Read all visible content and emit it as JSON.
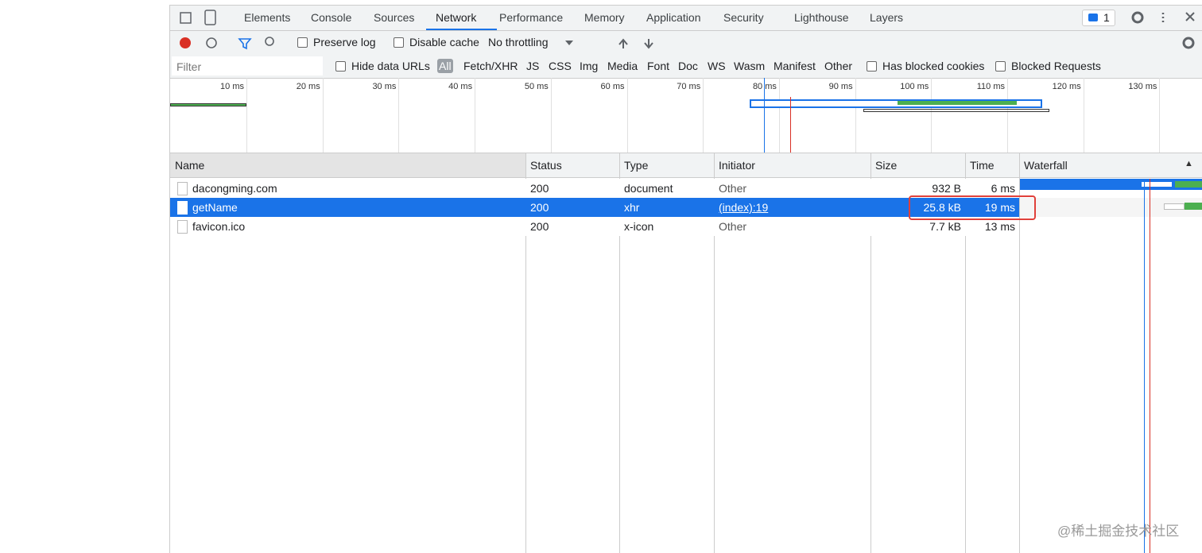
{
  "tabs": [
    "Elements",
    "Console",
    "Sources",
    "Network",
    "Performance",
    "Memory",
    "Application",
    "Security",
    "Lighthouse",
    "Layers"
  ],
  "issues_badge": "1",
  "toolbar": {
    "preserve_log": "Preserve log",
    "disable_cache": "Disable cache",
    "throttling": "No throttling"
  },
  "filter": {
    "placeholder": "Filter",
    "hide_data_urls": "Hide data URLs",
    "types": [
      "All",
      "Fetch/XHR",
      "JS",
      "CSS",
      "Img",
      "Media",
      "Font",
      "Doc",
      "WS",
      "Wasm",
      "Manifest",
      "Other"
    ],
    "blocked_cookies": "Has blocked cookies",
    "blocked_requests": "Blocked Requests"
  },
  "overview_ticks": [
    "10 ms",
    "20 ms",
    "30 ms",
    "40 ms",
    "50 ms",
    "60 ms",
    "70 ms",
    "80 ms",
    "90 ms",
    "100 ms",
    "110 ms",
    "120 ms",
    "130 ms"
  ],
  "table": {
    "columns": [
      "Name",
      "Status",
      "Type",
      "Initiator",
      "Size",
      "Time",
      "Waterfall"
    ],
    "rows": [
      [
        "dacongming.com",
        "200",
        "document",
        "Other",
        "932 B",
        "6 ms"
      ],
      [
        "getName",
        "200",
        "xhr",
        "(index):19",
        "25.8 kB",
        "19 ms"
      ],
      [
        "favicon.ico",
        "200",
        "x-icon",
        "Other",
        "7.7 kB",
        "13 ms"
      ]
    ]
  },
  "watermark": "@稀土掘金技术社区"
}
